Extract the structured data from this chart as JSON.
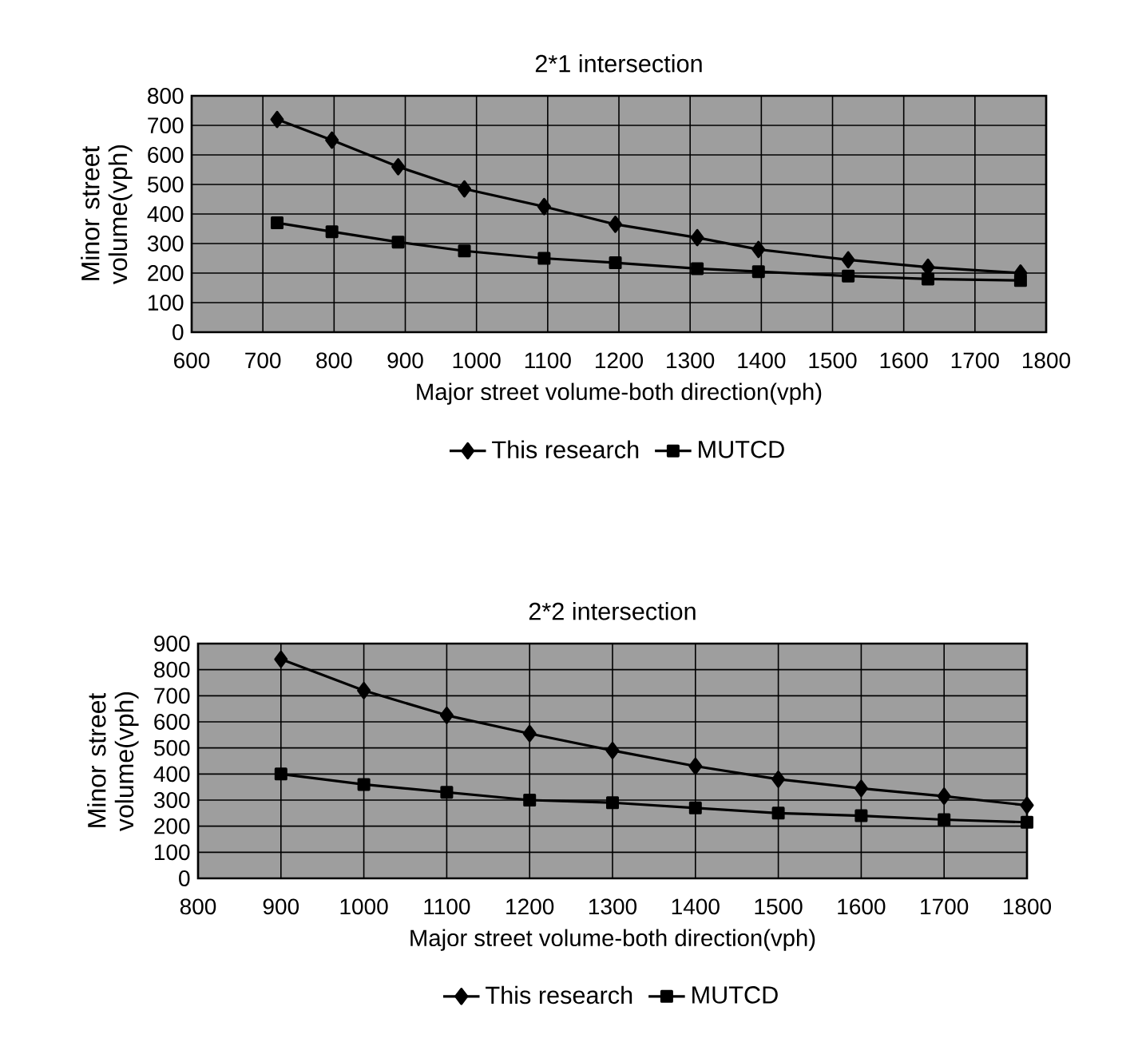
{
  "chart_data": [
    {
      "type": "line",
      "title": "2*1 intersection",
      "xlabel": "Major street volume-both direction(vph)",
      "ylabel": "Minor street volume(vph)",
      "xlim": [
        600,
        1800
      ],
      "ylim": [
        0,
        800
      ],
      "xticks": [
        600,
        700,
        800,
        900,
        1000,
        1100,
        1200,
        1300,
        1400,
        1500,
        1600,
        1700,
        1800
      ],
      "yticks": [
        0,
        100,
        200,
        300,
        400,
        500,
        600,
        700,
        800
      ],
      "grid": true,
      "legend": "bottom",
      "line_style": "solid",
      "series": [
        {
          "name": "This research",
          "color": "#000000",
          "marker": "diamond",
          "x": [
            720,
            797,
            890,
            983,
            1095,
            1195,
            1310,
            1396,
            1522,
            1634,
            1764
          ],
          "values": [
            720,
            650,
            560,
            485,
            425,
            365,
            320,
            280,
            245,
            220,
            200
          ]
        },
        {
          "name": "MUTCD",
          "color": "#000000",
          "marker": "square",
          "x": [
            720,
            797,
            890,
            983,
            1095,
            1195,
            1310,
            1396,
            1522,
            1634,
            1764
          ],
          "values": [
            370,
            340,
            305,
            275,
            250,
            235,
            215,
            205,
            190,
            180,
            175
          ]
        }
      ]
    },
    {
      "type": "line",
      "title": "2*2 intersection",
      "xlabel": "Major street volume-both direction(vph)",
      "ylabel": "Minor street volume(vph)",
      "xlim": [
        800,
        1800
      ],
      "ylim": [
        0,
        900
      ],
      "xticks": [
        800,
        900,
        1000,
        1100,
        1200,
        1300,
        1400,
        1500,
        1600,
        1700,
        1800
      ],
      "yticks": [
        0,
        100,
        200,
        300,
        400,
        500,
        600,
        700,
        800,
        900
      ],
      "grid": true,
      "legend": "bottom",
      "line_style": "solid",
      "series": [
        {
          "name": "This research",
          "color": "#000000",
          "marker": "diamond",
          "x": [
            900,
            1000,
            1100,
            1200,
            1300,
            1400,
            1500,
            1600,
            1700,
            1800
          ],
          "values": [
            840,
            720,
            625,
            555,
            490,
            430,
            380,
            345,
            315,
            280
          ]
        },
        {
          "name": "MUTCD",
          "color": "#000000",
          "marker": "square",
          "x": [
            900,
            1000,
            1100,
            1200,
            1300,
            1400,
            1500,
            1600,
            1700,
            1800
          ],
          "values": [
            400,
            360,
            330,
            300,
            290,
            270,
            250,
            240,
            225,
            215
          ]
        }
      ]
    }
  ]
}
